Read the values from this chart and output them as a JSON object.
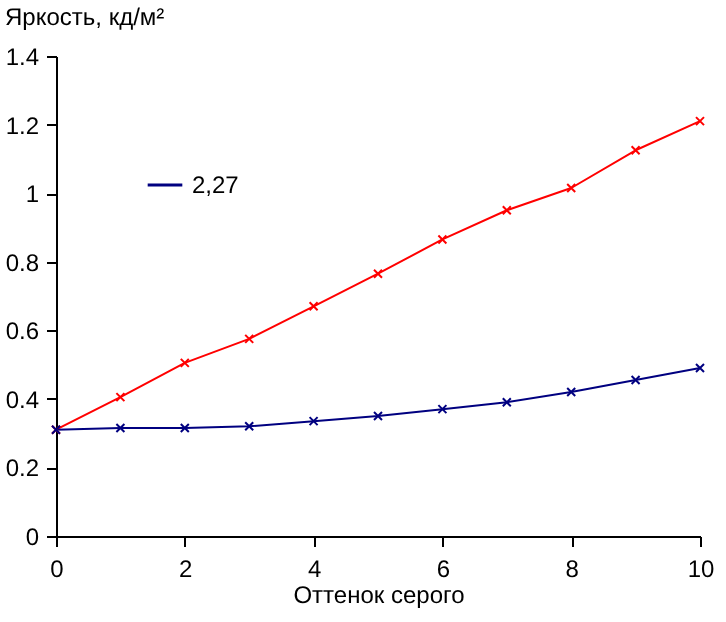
{
  "chart_data": {
    "type": "line",
    "ylabel": "Яркость, кд/м²",
    "xlabel": "Оттенок серого",
    "x": [
      0,
      1,
      2,
      3,
      4,
      5,
      6,
      7,
      8,
      9,
      10
    ],
    "series": [
      {
        "color": "#ff0000",
        "values": [
          0.31,
          0.405,
          0.505,
          0.575,
          0.67,
          0.765,
          0.865,
          0.95,
          1.015,
          1.125,
          1.21
        ]
      },
      {
        "name": "2,27",
        "color": "#000080",
        "values": [
          0.31,
          0.315,
          0.315,
          0.32,
          0.335,
          0.35,
          0.37,
          0.39,
          0.42,
          0.455,
          0.49
        ]
      }
    ],
    "xlim": [
      0,
      10
    ],
    "xticks": [
      0,
      2,
      4,
      6,
      8,
      10
    ],
    "ylim": [
      0,
      1.4
    ],
    "yticks": [
      0,
      0.2,
      0.4,
      0.6,
      0.8,
      1,
      1.2,
      1.4
    ],
    "grid": false,
    "legend": "top left",
    "marker": "cross",
    "line_style": "solid"
  }
}
